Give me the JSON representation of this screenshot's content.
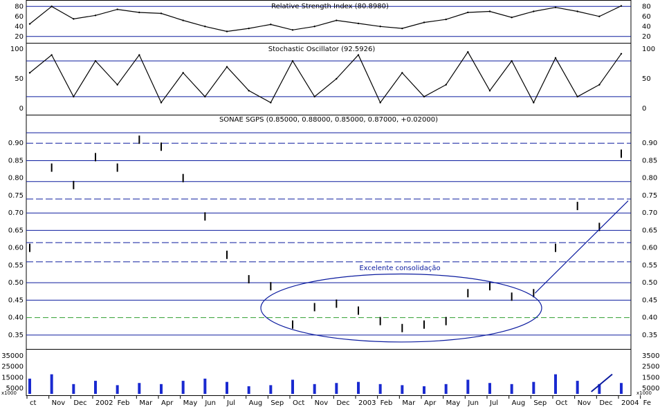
{
  "chart_data": [
    {
      "type": "line",
      "panel": "rsi",
      "title": "Relative Strength Index (80.8980)",
      "ylim": [
        10,
        90
      ],
      "yticks": [
        20,
        40,
        60,
        80
      ],
      "hlines": [
        20,
        80
      ],
      "grid": false,
      "x": [
        "Oct 2001",
        "Nov 2001",
        "Dec 2001",
        "Jan 2002",
        "Feb 2002",
        "Mar 2002",
        "Apr 2002",
        "May 2002",
        "Jun 2002",
        "Jul 2002",
        "Aug 2002",
        "Sep 2002",
        "Oct 2002",
        "Nov 2002",
        "Dec 2002",
        "Jan 2003",
        "Feb 2003",
        "Mar 2003",
        "Apr 2003",
        "May 2003",
        "Jun 2003",
        "Jul 2003",
        "Aug 2003",
        "Sep 2003",
        "Oct 2003",
        "Nov 2003",
        "Dec 2003",
        "Jan 2004"
      ],
      "series": [
        {
          "values": [
            45,
            80,
            55,
            62,
            74,
            68,
            66,
            52,
            40,
            30,
            36,
            44,
            33,
            40,
            52,
            46,
            40,
            36,
            48,
            54,
            68,
            70,
            58,
            70,
            78,
            70,
            60,
            81
          ]
        }
      ]
    },
    {
      "type": "line",
      "panel": "stochastic",
      "title": "Stochastic Oscillator (92.5926)",
      "ylim": [
        -8,
        108
      ],
      "yticks": [
        0,
        50,
        100
      ],
      "hlines": [
        20,
        80
      ],
      "grid": false,
      "x": [
        "Oct 2001",
        "Nov 2001",
        "Dec 2001",
        "Jan 2002",
        "Feb 2002",
        "Mar 2002",
        "Apr 2002",
        "May 2002",
        "Jun 2002",
        "Jul 2002",
        "Aug 2002",
        "Sep 2002",
        "Oct 2002",
        "Nov 2002",
        "Dec 2002",
        "Jan 2003",
        "Feb 2003",
        "Mar 2003",
        "Apr 2003",
        "May 2003",
        "Jun 2003",
        "Jul 2003",
        "Aug 2003",
        "Sep 2003",
        "Oct 2003",
        "Nov 2003",
        "Dec 2003",
        "Jan 2004"
      ],
      "series": [
        {
          "values": [
            60,
            90,
            20,
            80,
            40,
            90,
            10,
            60,
            20,
            70,
            30,
            10,
            80,
            20,
            50,
            90,
            10,
            60,
            20,
            40,
            95,
            30,
            80,
            10,
            85,
            20,
            40,
            92
          ]
        }
      ]
    },
    {
      "type": "bar",
      "panel": "price",
      "title": "SONAE SGPS (0.85000, 0.88000, 0.85000, 0.87000, +0.02000)",
      "ylim": [
        0.32,
        0.95
      ],
      "yticks": [
        0.35,
        0.4,
        0.45,
        0.5,
        0.55,
        0.6,
        0.65,
        0.7,
        0.75,
        0.8,
        0.85,
        0.9
      ],
      "hlines": [
        0.93,
        0.85,
        0.79,
        0.7,
        0.65,
        0.5,
        0.45,
        0.35
      ],
      "dashed_lines": [
        0.9,
        0.74,
        0.615,
        0.56
      ],
      "green_dashed_line": 0.4,
      "grid": false,
      "annotations": [
        "Excelente consolidação"
      ],
      "x": [
        "Oct 2001",
        "Nov 2001",
        "Dec 2001",
        "Jan 2002",
        "Feb 2002",
        "Mar 2002",
        "Apr 2002",
        "May 2002",
        "Jun 2002",
        "Jul 2002",
        "Aug 2002",
        "Sep 2002",
        "Oct 2002",
        "Nov 2002",
        "Dec 2002",
        "Jan 2003",
        "Feb 2003",
        "Mar 2003",
        "Apr 2003",
        "May 2003",
        "Jun 2003",
        "Jul 2003",
        "Aug 2003",
        "Sep 2003",
        "Oct 2003",
        "Nov 2003",
        "Dec 2003",
        "Jan 2004"
      ],
      "series": [
        {
          "values": [
            0.6,
            0.83,
            0.78,
            0.86,
            0.83,
            0.91,
            0.89,
            0.8,
            0.69,
            0.58,
            0.51,
            0.49,
            0.38,
            0.43,
            0.44,
            0.42,
            0.39,
            0.37,
            0.38,
            0.39,
            0.47,
            0.49,
            0.46,
            0.47,
            0.6,
            0.72,
            0.66,
            0.87
          ]
        }
      ]
    },
    {
      "type": "bar",
      "panel": "volume",
      "ylabel": "x1000",
      "ylim": [
        0,
        40000
      ],
      "yticks": [
        5000,
        15000,
        25000,
        35000
      ],
      "grid": false,
      "x": [
        "Oct 2001",
        "Nov 2001",
        "Dec 2001",
        "Jan 2002",
        "Feb 2002",
        "Mar 2002",
        "Apr 2002",
        "May 2002",
        "Jun 2002",
        "Jul 2002",
        "Aug 2002",
        "Sep 2002",
        "Oct 2002",
        "Nov 2002",
        "Dec 2002",
        "Jan 2003",
        "Feb 2003",
        "Mar 2003",
        "Apr 2003",
        "May 2003",
        "Jun 2003",
        "Jul 2003",
        "Aug 2003",
        "Sep 2003",
        "Oct 2003",
        "Nov 2003",
        "Dec 2003",
        "Jan 2004"
      ],
      "series": [
        {
          "values": [
            14000,
            18000,
            9000,
            12000,
            8000,
            10000,
            9000,
            12000,
            14000,
            11000,
            7000,
            8000,
            13000,
            9000,
            10000,
            11000,
            9000,
            8000,
            7000,
            9000,
            13000,
            10000,
            9000,
            11000,
            18000,
            12000,
            9000,
            10000
          ]
        }
      ]
    }
  ],
  "x_axis_labels": [
    "ct",
    "Nov",
    "Dec",
    "2002",
    "Feb",
    "Mar",
    "Apr",
    "May",
    "Jun",
    "Jul",
    "Aug",
    "Sep",
    "Oct",
    "Nov",
    "Dec",
    "2003",
    "Feb",
    "Mar",
    "Apr",
    "May",
    "Jun",
    "Jul",
    "Aug",
    "Sep",
    "Oct",
    "Nov",
    "Dec",
    "2004",
    "Fe"
  ],
  "colors": {
    "line": "#0a1a9e",
    "price": "#000000",
    "volume": "#1a2ad0",
    "green": "#2e9e2e",
    "text": "#000000"
  }
}
